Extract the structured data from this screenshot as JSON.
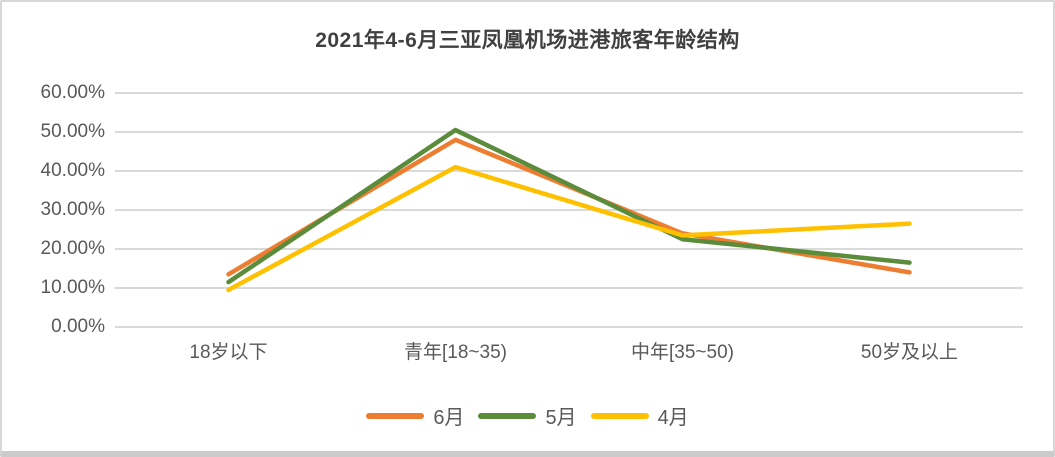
{
  "chart_data": {
    "type": "line",
    "title": "2021年4-6月三亚凤凰机场进港旅客年龄结构",
    "categories": [
      "18岁以下",
      "青年[18~35)",
      "中年[35~50)",
      "50岁及以上"
    ],
    "series": [
      {
        "name": "6月",
        "color": "#ED7D31",
        "values": [
          13.5,
          48.0,
          24.0,
          14.0
        ]
      },
      {
        "name": "5月",
        "color": "#5A8C3C",
        "values": [
          11.5,
          50.5,
          22.5,
          16.5
        ]
      },
      {
        "name": "4月",
        "color": "#FFC000",
        "values": [
          9.5,
          41.0,
          23.5,
          26.5
        ]
      }
    ],
    "y_axis": {
      "min": 0,
      "max": 60,
      "step": 10,
      "tick_labels": [
        "0.00%",
        "10.00%",
        "20.00%",
        "30.00%",
        "40.00%",
        "50.00%",
        "60.00%"
      ]
    },
    "x_label": "",
    "y_label": "",
    "grid": true,
    "legend_position": "bottom",
    "colors": {
      "title_text": "#404040",
      "axis_text": "#595959",
      "gridline": "#D9D9D9",
      "background": "#FFFFFF",
      "card_border": "#D7D7D7"
    }
  }
}
